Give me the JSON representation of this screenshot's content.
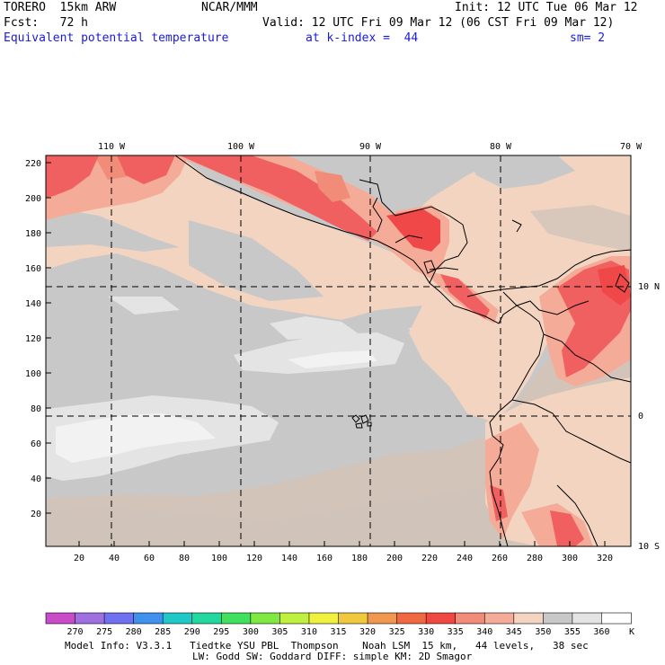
{
  "header": {
    "model": "TORERO  15km ARW",
    "org": "NCAR/MMM",
    "init": "Init: 12 UTC Tue 06 Mar 12",
    "fcst": "Fcst:   72 h",
    "valid": "Valid: 12 UTC Fri 09 Mar 12 (06 CST Fri 09 Mar 12)",
    "field": "Equivalent potential temperature",
    "level": "at k-index =  44",
    "smooth": "sm= 2"
  },
  "map": {
    "lon_labels": [
      "110 W",
      "100 W",
      "90 W",
      "80 W",
      "70 W"
    ],
    "lat_labels": [
      "10 N",
      "0",
      "10 S"
    ],
    "y_ticks": [
      "220",
      "200",
      "180",
      "160",
      "140",
      "120",
      "100",
      "80",
      "60",
      "40",
      "20"
    ],
    "x_ticks": [
      "20",
      "40",
      "60",
      "80",
      "100",
      "120",
      "140",
      "160",
      "180",
      "200",
      "220",
      "240",
      "260",
      "280",
      "300",
      "320"
    ]
  },
  "colorbar": {
    "labels": [
      "270",
      "275",
      "280",
      "285",
      "290",
      "295",
      "300",
      "305",
      "310",
      "315",
      "320",
      "325",
      "330",
      "335",
      "340",
      "345",
      "350",
      "355",
      "360"
    ],
    "unit": "K",
    "colors": [
      "#c84bc8",
      "#a070e0",
      "#7070f0",
      "#4090f0",
      "#20c8c8",
      "#20d8a0",
      "#40e060",
      "#80e840",
      "#c0f040",
      "#f0f040",
      "#f0c840",
      "#f09850",
      "#f06840",
      "#f04840",
      "#f08c78",
      "#f4ac98",
      "#f2d4c0",
      "#c8c8c8",
      "#e4e4e4",
      "#ffffff"
    ]
  },
  "footer": {
    "line1": "Model Info: V3.3.1   Tiedtke YSU PBL  Thompson    Noah LSM  15 km,   44 levels,   38 sec",
    "line2": "LW: Godd SW: Goddard DIFF: simple KM: 2D Smagor"
  },
  "colors": {
    "ocean_base": "#c8c8c8",
    "land_warm": "#f2d4c0",
    "light_gray": "#e4e4e4",
    "white_patch": "#f2f2f2",
    "pink": "#f4ac98",
    "salmon": "#f08c78",
    "red": "#f06060"
  }
}
